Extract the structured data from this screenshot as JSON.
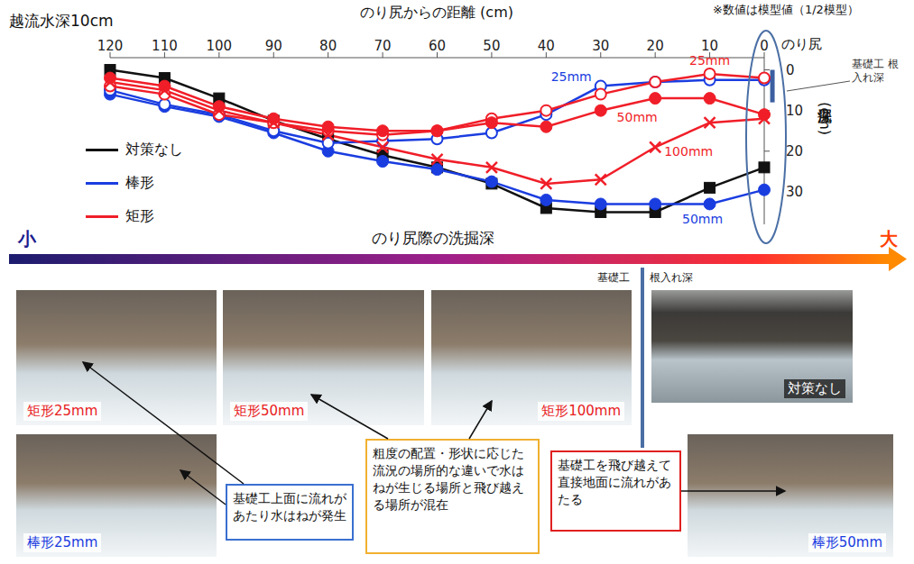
{
  "chart_data": {
    "type": "line",
    "title": "越流水深10cm",
    "note": "※数値は模型値（1/2模型）",
    "x_label": "のり尻からの距離 (cm)",
    "x_end_label": "のり尻",
    "y_label": "洗掘深 (cm)",
    "x": [
      120,
      110,
      100,
      90,
      80,
      70,
      60,
      50,
      40,
      30,
      20,
      10,
      0
    ],
    "xlim": [
      120,
      0
    ],
    "xticks": [
      120,
      110,
      100,
      90,
      80,
      70,
      60,
      50,
      40,
      30,
      20,
      10,
      0
    ],
    "ylim": [
      38,
      -3
    ],
    "yticks": [
      0,
      10,
      20,
      30
    ],
    "grid": false,
    "legend": "left",
    "foundation_depth": 8,
    "foundation_label": "基礎工 根入れ深",
    "series": [
      {
        "name": "対策なし",
        "color": "#111111",
        "marker": "square",
        "values": [
          0,
          2,
          7,
          12.5,
          17,
          21,
          24,
          28,
          34,
          35,
          35,
          29,
          24
        ]
      },
      {
        "name": "棒形",
        "label": "50mm",
        "color": "#1a3de0",
        "marker": "circle",
        "values": [
          6,
          9,
          11.5,
          15.5,
          20,
          22.5,
          24.5,
          27.5,
          32,
          33,
          33,
          33,
          29.5
        ]
      },
      {
        "name": "棒形",
        "label": "25mm",
        "color": "#1a3de0",
        "marker": "open_circle",
        "values": [
          5,
          8.5,
          11,
          15,
          18,
          17.5,
          17,
          15.5,
          11,
          4,
          3,
          2.5,
          2.5
        ]
      },
      {
        "name": "矩形",
        "label": "25mm",
        "color": "#f01e28",
        "marker": "open_circle",
        "values": [
          4,
          6,
          11,
          13,
          15,
          16,
          15,
          12,
          10,
          6,
          3,
          1,
          2
        ]
      },
      {
        "name": "矩形",
        "label": "50mm",
        "color": "#f01e28",
        "marker": "circle",
        "values": [
          2,
          4,
          9,
          12,
          14,
          15,
          15,
          13,
          14,
          10,
          7,
          7,
          11
        ]
      },
      {
        "name": "矩形",
        "label": "100mm",
        "color": "#f01e28",
        "marker": "x",
        "values": [
          3,
          5,
          10,
          13,
          16,
          19,
          22,
          24,
          28,
          27,
          19,
          13,
          12
        ]
      }
    ]
  },
  "depth_scale": {
    "label": "のり尻際の洗掘深",
    "low": "小",
    "high": "大"
  },
  "divider": {
    "left_label": "基礎工",
    "right_label": "根入れ深"
  },
  "photos": [
    {
      "caption": "矩形25mm",
      "color": "#e8201c"
    },
    {
      "caption": "矩形50mm",
      "color": "#e8201c"
    },
    {
      "caption": "矩形100mm",
      "color": "#e8201c"
    },
    {
      "caption": "対策なし",
      "color": "#ffffff"
    },
    {
      "caption": "棒形25mm",
      "color": "#1a3de0"
    },
    {
      "caption": "棒形50mm",
      "color": "#1a3de0"
    }
  ],
  "annotations": [
    {
      "text": "基礎工上面に流れがあたり水はねが発生",
      "color": "#3a6fd0"
    },
    {
      "text": "粗度の配置・形状に応じた流況の場所的な違いで水はねが生じる場所と飛び越える場所が混在",
      "color": "#f0b030"
    },
    {
      "text": "基礎工を飛び越えて直接地面に流れがあたる",
      "color": "#e02020"
    }
  ]
}
